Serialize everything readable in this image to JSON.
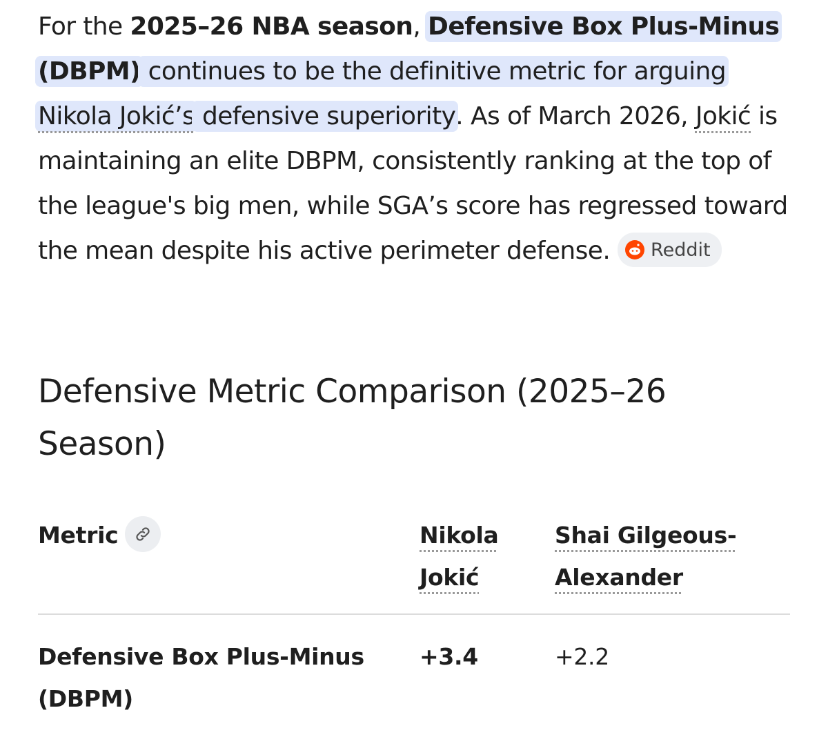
{
  "paragraph": {
    "runs": [
      {
        "text": "For the ",
        "style": "plain"
      },
      {
        "text": "2025–26 NBA season",
        "style": "bold"
      },
      {
        "text": ", ",
        "style": "plain"
      },
      {
        "text": "Defensive Box Plus-Minus (DBPM)",
        "style": "bold-highlight"
      },
      {
        "text": " continues to be the definitive metric for arguing ",
        "style": "highlight"
      },
      {
        "text": "Nikola Jokić’s",
        "style": "highlight-link"
      },
      {
        "text": " defensive superiority",
        "style": "highlight"
      },
      {
        "text": ". As of March 2026, ",
        "style": "plain"
      },
      {
        "text": "Jokić",
        "style": "link"
      },
      {
        "text": " is maintaining an elite DBPM, consistently ranking at the top of the league's big men, while SGA’s score has regressed toward the mean despite his active perimeter defense. ",
        "style": "plain"
      }
    ],
    "source": "Reddit"
  },
  "heading": "Defensive Metric Comparison (2025–26 Season)",
  "table": {
    "header": [
      "Metric",
      "Nikola Jokić",
      "Shai Gilgeous-Alexander"
    ],
    "rows": [
      [
        "Defensive Box Plus-Minus (DBPM)",
        "+3.4",
        "+2.2"
      ]
    ]
  }
}
